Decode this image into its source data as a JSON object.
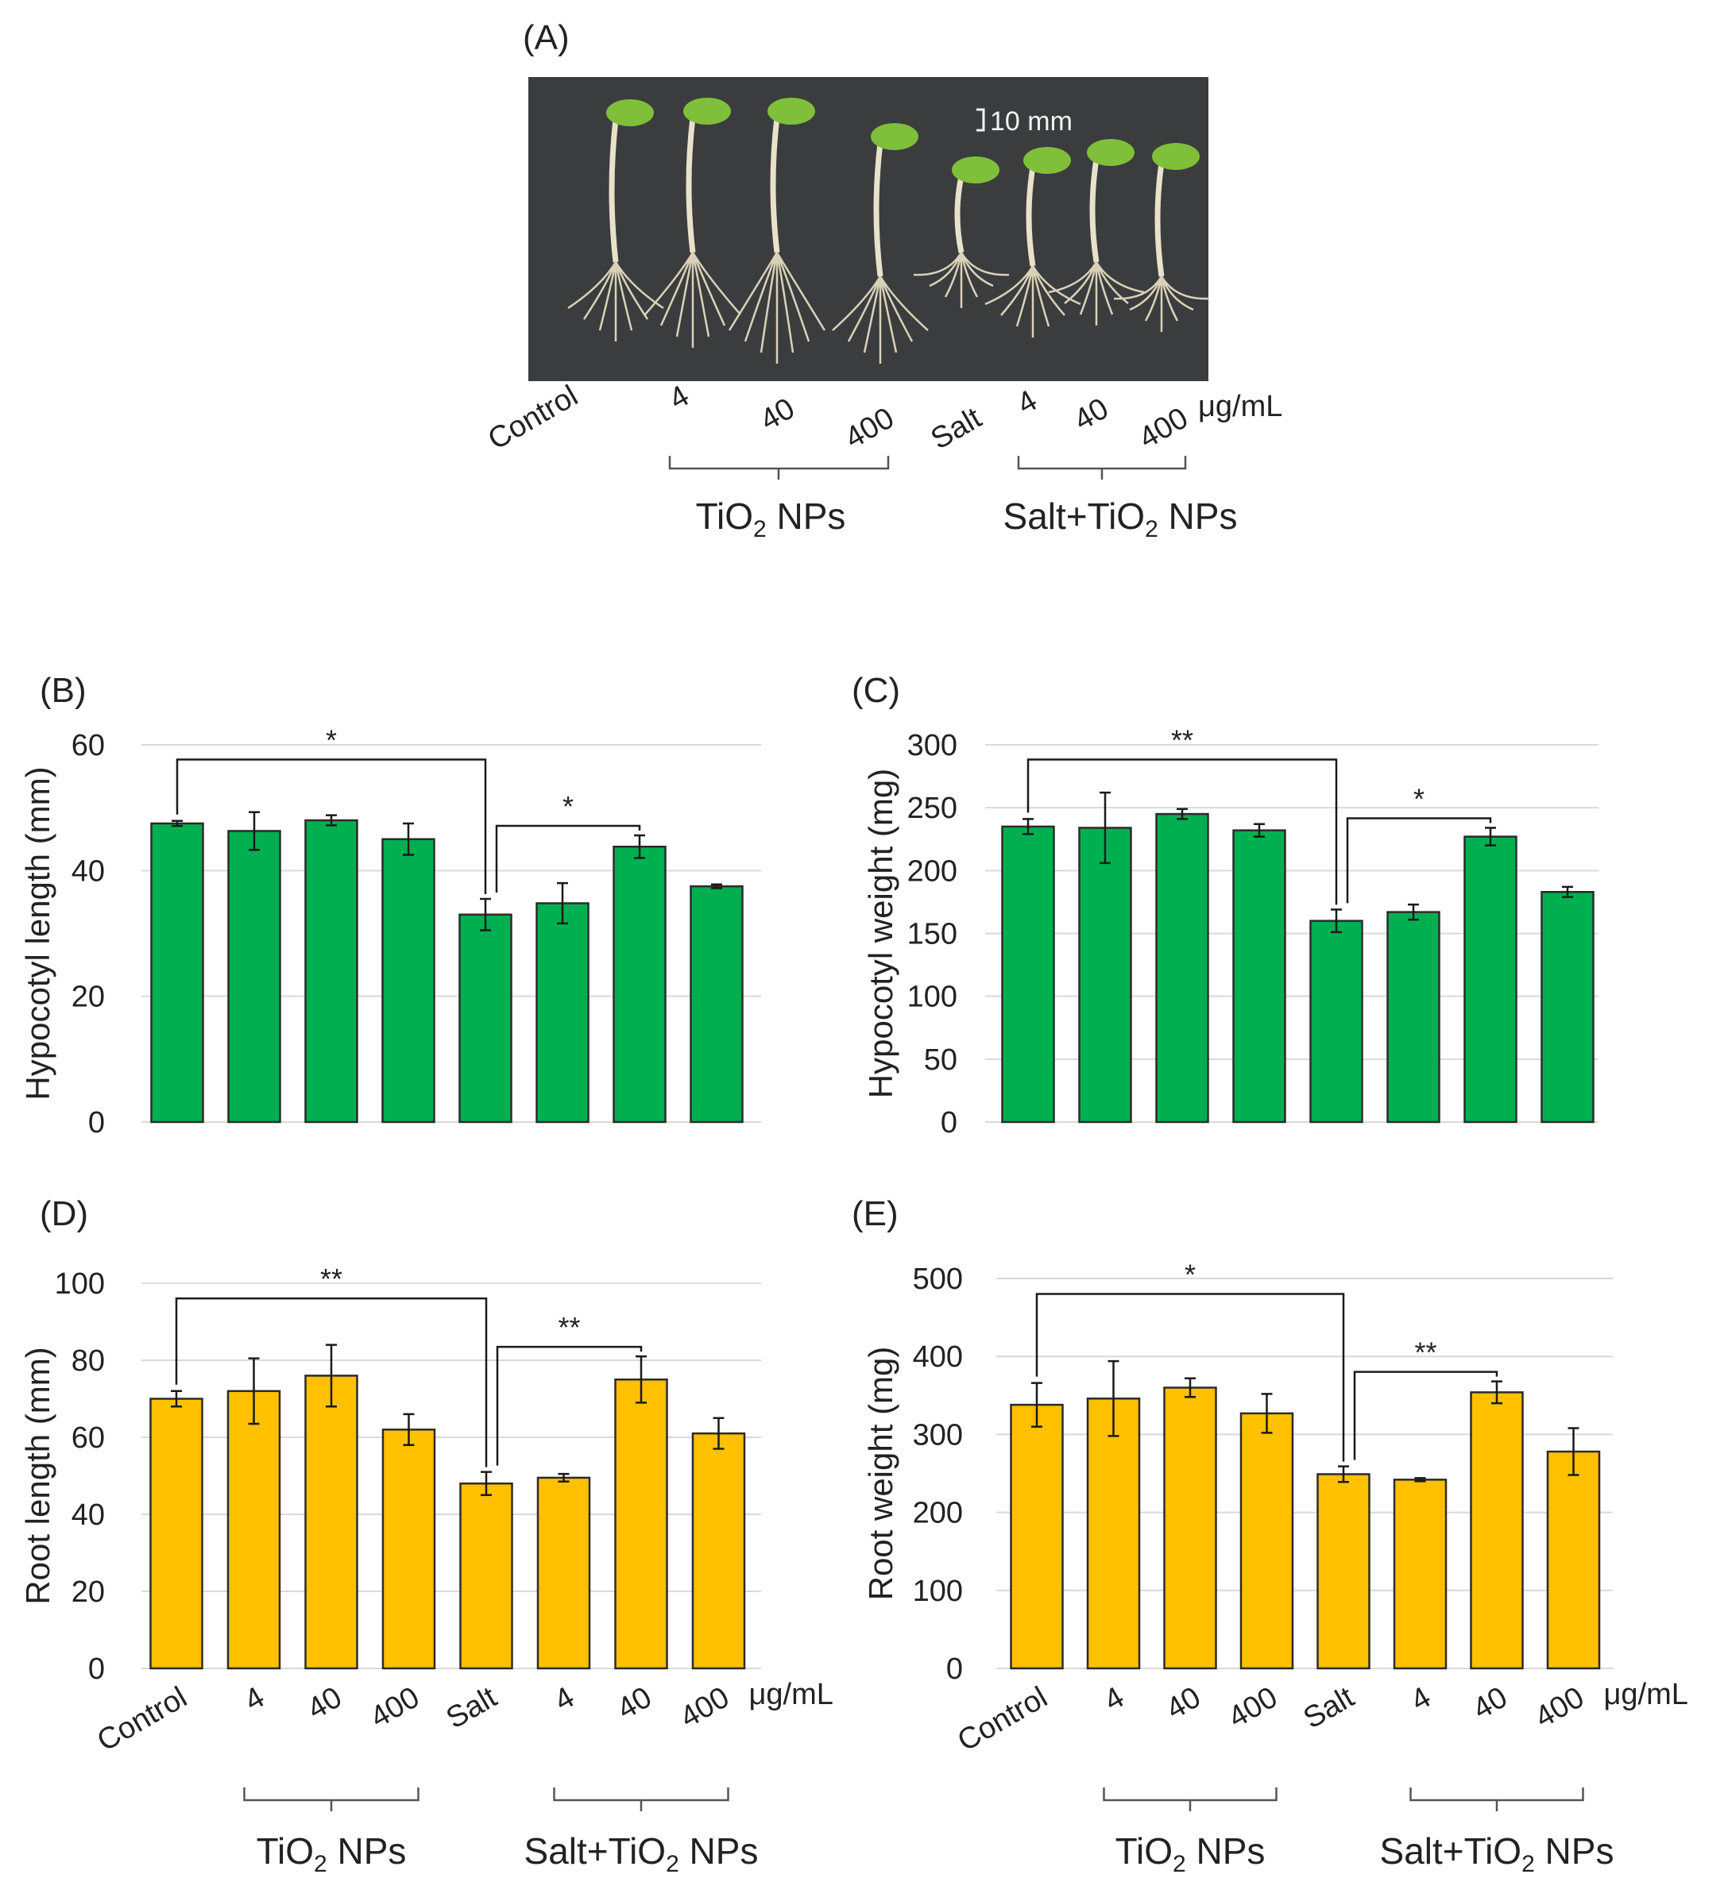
{
  "photo_panel": {
    "label": "(A)",
    "scale_bar_text": "10 mm",
    "lane_labels": [
      "Control",
      "4",
      "40",
      "400",
      "Salt",
      "4",
      "40",
      "400"
    ],
    "unit": "μg/mL",
    "groups": [
      {
        "name_main": "TiO",
        "name_sub": "2",
        "name_tail": " NPs"
      },
      {
        "name_main": "Salt+TiO",
        "name_sub": "2",
        "name_tail": " NPs"
      }
    ],
    "colors": {
      "background": "#3a3b3d",
      "cotyledon": "#7fbf3a",
      "stem": "#e8e2cc"
    }
  },
  "x_axis": {
    "categories": [
      "Control",
      "4",
      "40",
      "400",
      "Salt",
      "4",
      "40",
      "400"
    ],
    "unit": "μg/mL",
    "groups": [
      {
        "name_main": "TiO",
        "name_sub": "2",
        "name_tail": " NPs"
      },
      {
        "name_main": "Salt+TiO",
        "name_sub": "2",
        "name_tail": " NPs"
      }
    ]
  },
  "chart_data": [
    {
      "panel": "(B)",
      "type": "bar",
      "ylabel": "Hypocotyl length (mm)",
      "ylim": [
        0,
        60
      ],
      "yticks": [
        0,
        20,
        40,
        60
      ],
      "color": "#00b050",
      "categories": [
        "Control",
        "4",
        "40",
        "400",
        "Salt",
        "4",
        "40",
        "400"
      ],
      "values": [
        47.5,
        46.3,
        48.0,
        45.0,
        33.0,
        34.8,
        43.8,
        37.5
      ],
      "errors": [
        0.4,
        3.0,
        0.8,
        2.5,
        2.5,
        3.2,
        1.8,
        0.3
      ],
      "significance": [
        {
          "from": 0,
          "to": 4,
          "label": "*"
        },
        {
          "from": 4,
          "to": 6,
          "label": "*"
        }
      ]
    },
    {
      "panel": "(C)",
      "type": "bar",
      "ylabel": "Hypocotyl weight (mg)",
      "ylim": [
        0,
        300
      ],
      "yticks": [
        0,
        50,
        100,
        150,
        200,
        250,
        300
      ],
      "color": "#00b050",
      "categories": [
        "Control",
        "4",
        "40",
        "400",
        "Salt",
        "4",
        "40",
        "400"
      ],
      "values": [
        235,
        234,
        245,
        232,
        160,
        167,
        227,
        183
      ],
      "errors": [
        6,
        28,
        4,
        5,
        9,
        6,
        7,
        4
      ],
      "significance": [
        {
          "from": 0,
          "to": 4,
          "label": "**"
        },
        {
          "from": 4,
          "to": 6,
          "label": "*"
        }
      ]
    },
    {
      "panel": "(D)",
      "type": "bar",
      "ylabel": "Root length (mm)",
      "ylim": [
        0,
        100
      ],
      "yticks": [
        0,
        20,
        40,
        60,
        80,
        100
      ],
      "color": "#ffc000",
      "categories": [
        "Control",
        "4",
        "40",
        "400",
        "Salt",
        "4",
        "40",
        "400"
      ],
      "values": [
        70,
        72,
        76,
        62,
        48,
        49.5,
        75,
        61
      ],
      "errors": [
        2,
        8.5,
        8,
        4,
        3,
        1,
        6,
        4
      ],
      "significance": [
        {
          "from": 0,
          "to": 4,
          "label": "**"
        },
        {
          "from": 4,
          "to": 6,
          "label": "**"
        }
      ]
    },
    {
      "panel": "(E)",
      "type": "bar",
      "ylabel": "Root weight (mg)",
      "ylim": [
        0,
        500
      ],
      "yticks": [
        0,
        100,
        200,
        300,
        400,
        500
      ],
      "color": "#ffc000",
      "categories": [
        "Control",
        "4",
        "40",
        "400",
        "Salt",
        "4",
        "40",
        "400"
      ],
      "values": [
        338,
        346,
        360,
        327,
        249,
        242,
        354,
        278
      ],
      "errors": [
        28,
        48,
        12,
        25,
        10,
        2,
        14,
        30
      ],
      "significance": [
        {
          "from": 0,
          "to": 4,
          "label": "*"
        },
        {
          "from": 4,
          "to": 6,
          "label": "**"
        }
      ]
    }
  ]
}
